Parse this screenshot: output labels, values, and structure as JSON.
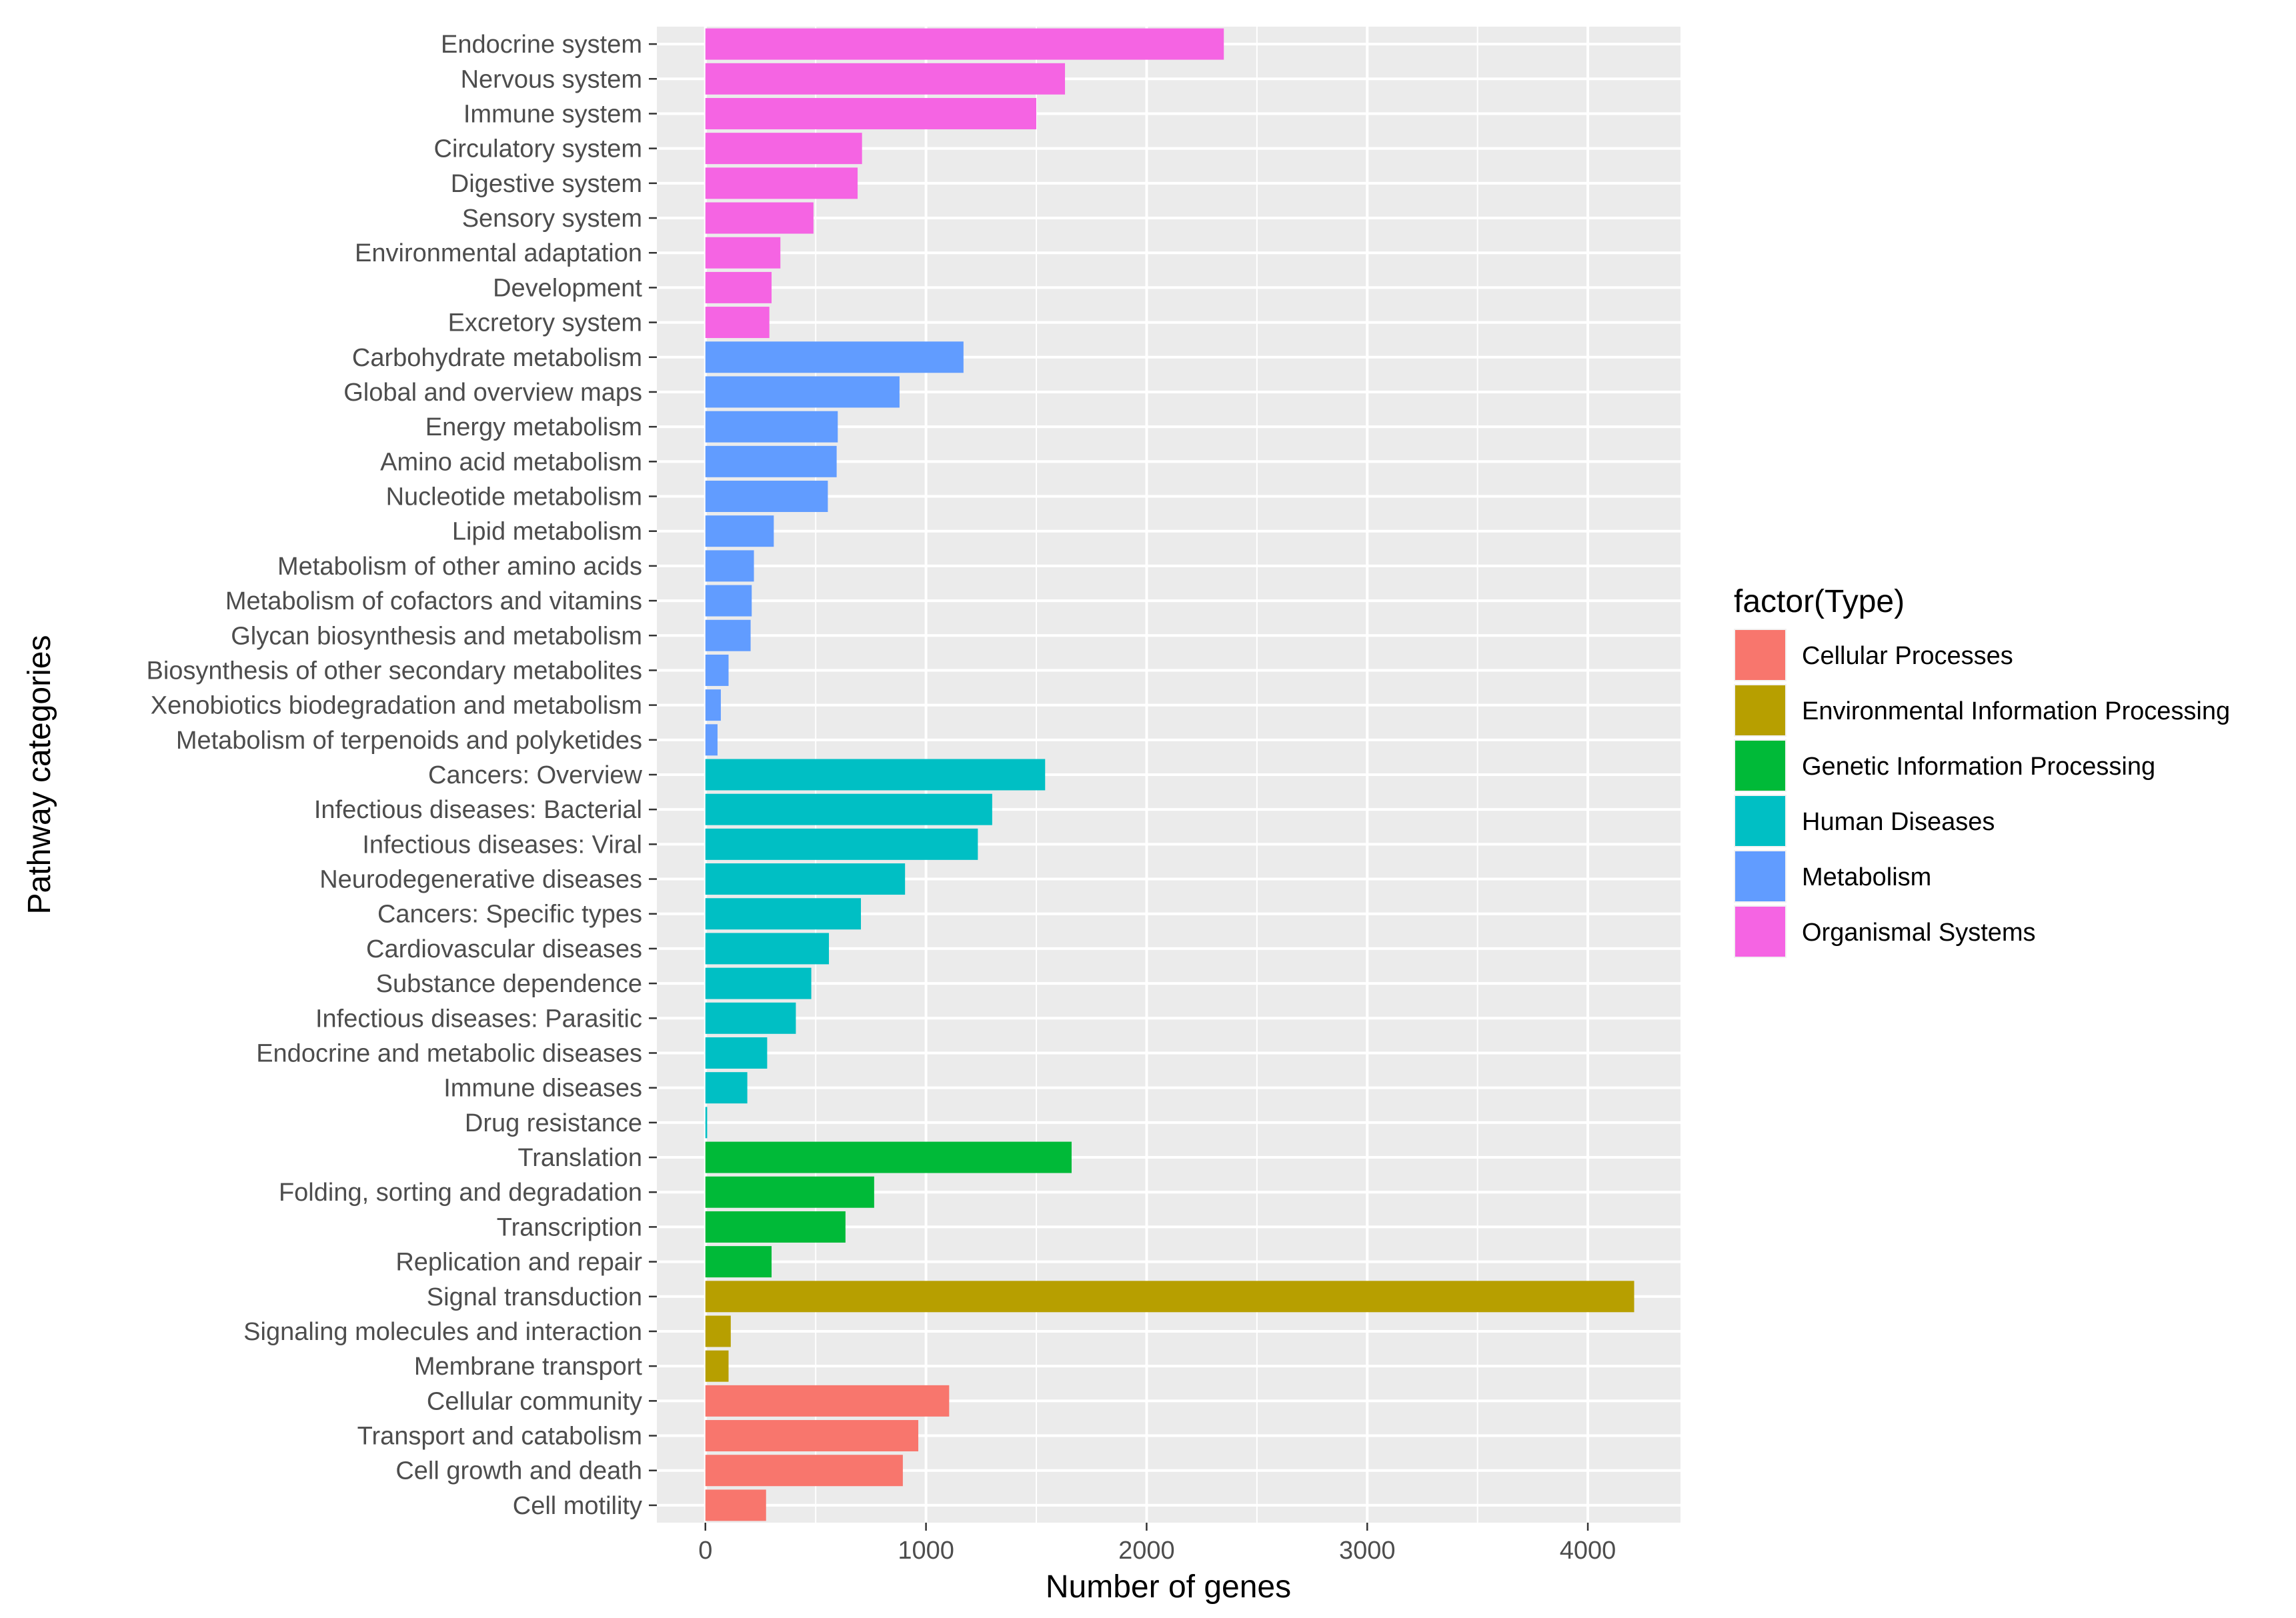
{
  "chart_data": {
    "type": "bar",
    "orientation": "horizontal",
    "xlabel": "Number of genes",
    "ylabel": "Pathway categories",
    "xlim": [
      -220,
      4420
    ],
    "xticks": [
      0,
      1000,
      2000,
      3000,
      4000
    ],
    "grid": true,
    "legend_title": "factor(Type)",
    "legend_position": "right",
    "types": [
      {
        "name": "Cellular Processes",
        "color": "#F8766D"
      },
      {
        "name": "Environmental Information Processing",
        "color": "#B79F00"
      },
      {
        "name": "Genetic Information Processing",
        "color": "#00BA38"
      },
      {
        "name": "Human Diseases",
        "color": "#00BFC4"
      },
      {
        "name": "Metabolism",
        "color": "#619CFF"
      },
      {
        "name": "Organismal Systems",
        "color": "#F564E3"
      }
    ],
    "categories": [
      {
        "label": "Endocrine system",
        "value": 2350,
        "type": "Organismal Systems"
      },
      {
        "label": "Nervous system",
        "value": 1630,
        "type": "Organismal Systems"
      },
      {
        "label": "Immune system",
        "value": 1500,
        "type": "Organismal Systems"
      },
      {
        "label": "Circulatory system",
        "value": 710,
        "type": "Organismal Systems"
      },
      {
        "label": "Digestive system",
        "value": 690,
        "type": "Organismal Systems"
      },
      {
        "label": "Sensory system",
        "value": 490,
        "type": "Organismal Systems"
      },
      {
        "label": "Environmental adaptation",
        "value": 340,
        "type": "Organismal Systems"
      },
      {
        "label": "Development",
        "value": 300,
        "type": "Organismal Systems"
      },
      {
        "label": "Excretory system",
        "value": 290,
        "type": "Organismal Systems"
      },
      {
        "label": "Carbohydrate metabolism",
        "value": 1170,
        "type": "Metabolism"
      },
      {
        "label": "Global and overview maps",
        "value": 880,
        "type": "Metabolism"
      },
      {
        "label": "Energy metabolism",
        "value": 600,
        "type": "Metabolism"
      },
      {
        "label": "Amino acid metabolism",
        "value": 595,
        "type": "Metabolism"
      },
      {
        "label": "Nucleotide metabolism",
        "value": 555,
        "type": "Metabolism"
      },
      {
        "label": "Lipid metabolism",
        "value": 310,
        "type": "Metabolism"
      },
      {
        "label": "Metabolism of other amino acids",
        "value": 220,
        "type": "Metabolism"
      },
      {
        "label": "Metabolism of cofactors and vitamins",
        "value": 210,
        "type": "Metabolism"
      },
      {
        "label": "Glycan biosynthesis and metabolism",
        "value": 205,
        "type": "Metabolism"
      },
      {
        "label": "Biosynthesis of other secondary metabolites",
        "value": 105,
        "type": "Metabolism"
      },
      {
        "label": "Xenobiotics biodegradation and metabolism",
        "value": 70,
        "type": "Metabolism"
      },
      {
        "label": "Metabolism of terpenoids and polyketides",
        "value": 55,
        "type": "Metabolism"
      },
      {
        "label": "Cancers: Overview",
        "value": 1540,
        "type": "Human Diseases"
      },
      {
        "label": "Infectious diseases: Bacterial",
        "value": 1300,
        "type": "Human Diseases"
      },
      {
        "label": "Infectious diseases: Viral",
        "value": 1235,
        "type": "Human Diseases"
      },
      {
        "label": "Neurodegenerative diseases",
        "value": 905,
        "type": "Human Diseases"
      },
      {
        "label": "Cancers: Specific types",
        "value": 705,
        "type": "Human Diseases"
      },
      {
        "label": "Cardiovascular diseases",
        "value": 560,
        "type": "Human Diseases"
      },
      {
        "label": "Substance dependence",
        "value": 480,
        "type": "Human Diseases"
      },
      {
        "label": "Infectious diseases: Parasitic",
        "value": 410,
        "type": "Human Diseases"
      },
      {
        "label": "Endocrine and metabolic diseases",
        "value": 280,
        "type": "Human Diseases"
      },
      {
        "label": "Immune diseases",
        "value": 190,
        "type": "Human Diseases"
      },
      {
        "label": "Drug resistance",
        "value": 8,
        "type": "Human Diseases"
      },
      {
        "label": "Translation",
        "value": 1660,
        "type": "Genetic Information Processing"
      },
      {
        "label": "Folding, sorting and degradation",
        "value": 765,
        "type": "Genetic Information Processing"
      },
      {
        "label": "Transcription",
        "value": 635,
        "type": "Genetic Information Processing"
      },
      {
        "label": "Replication and repair",
        "value": 300,
        "type": "Genetic Information Processing"
      },
      {
        "label": "Signal transduction",
        "value": 4210,
        "type": "Environmental Information Processing"
      },
      {
        "label": "Signaling molecules and interaction",
        "value": 115,
        "type": "Environmental Information Processing"
      },
      {
        "label": "Membrane transport",
        "value": 105,
        "type": "Environmental Information Processing"
      },
      {
        "label": "Cellular community",
        "value": 1105,
        "type": "Cellular Processes"
      },
      {
        "label": "Transport and catabolism",
        "value": 965,
        "type": "Cellular Processes"
      },
      {
        "label": "Cell growth and death",
        "value": 895,
        "type": "Cellular Processes"
      },
      {
        "label": "Cell motility",
        "value": 275,
        "type": "Cellular Processes"
      }
    ]
  }
}
